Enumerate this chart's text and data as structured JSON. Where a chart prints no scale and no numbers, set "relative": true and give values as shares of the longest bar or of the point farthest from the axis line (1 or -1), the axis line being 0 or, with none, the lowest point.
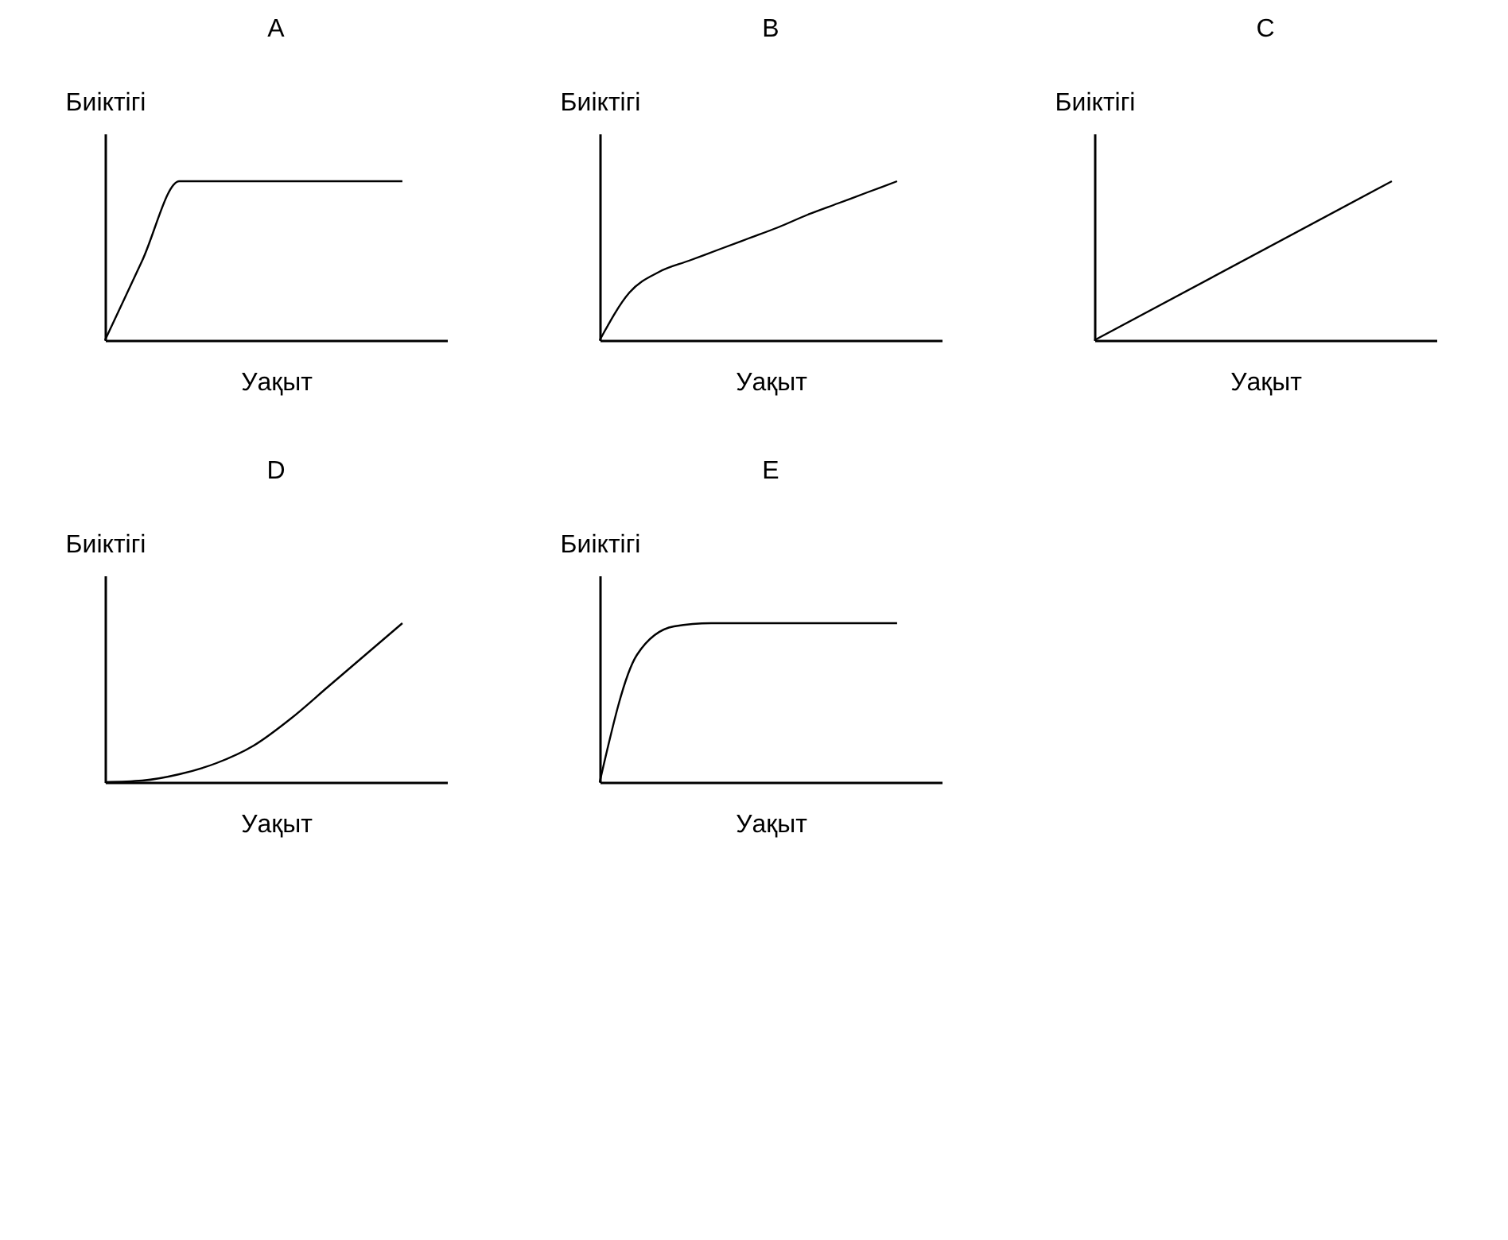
{
  "chart_data": [
    {
      "type": "line",
      "title": "A",
      "xlabel": "Уақыт",
      "ylabel": "Биіктігі",
      "relative": true,
      "color": "#000000",
      "categories": [
        null,
        null,
        null,
        null,
        null,
        null,
        null,
        null,
        null
      ],
      "values": [
        0,
        0.5,
        1,
        1,
        1,
        1,
        1,
        1,
        1
      ]
    },
    {
      "type": "line",
      "title": "B",
      "xlabel": "Уақыт",
      "ylabel": "Биіктігі",
      "relative": true,
      "color": "#000000",
      "categories": [
        null,
        null,
        null,
        null,
        null,
        null,
        null,
        null,
        null,
        null,
        null
      ],
      "values": [
        0,
        0.3,
        0.43,
        0.5,
        0.57,
        0.64,
        0.71,
        0.79,
        0.86,
        0.93,
        1
      ]
    },
    {
      "type": "line",
      "title": "C",
      "xlabel": "Уақыт",
      "ylabel": "Биіктігі",
      "relative": true,
      "color": "#000000",
      "categories": [
        null,
        null
      ],
      "values": [
        0,
        1
      ]
    },
    {
      "type": "line",
      "title": "D",
      "xlabel": "Уақыт",
      "ylabel": "Биіктігі",
      "relative": true,
      "color": "#000000",
      "categories": [
        null,
        null,
        null,
        null,
        null,
        null,
        null,
        null,
        null
      ],
      "values": [
        0,
        0.01,
        0.05,
        0.12,
        0.23,
        0.4,
        0.6,
        0.8,
        1
      ]
    },
    {
      "type": "line",
      "title": "E",
      "xlabel": "Уақыт",
      "ylabel": "Биіктігі",
      "relative": true,
      "color": "#000000",
      "categories": [
        null,
        null,
        null,
        null,
        null,
        null,
        null,
        null,
        null
      ],
      "values": [
        0,
        0.8,
        0.98,
        1,
        1,
        1,
        1,
        1,
        1
      ]
    }
  ]
}
